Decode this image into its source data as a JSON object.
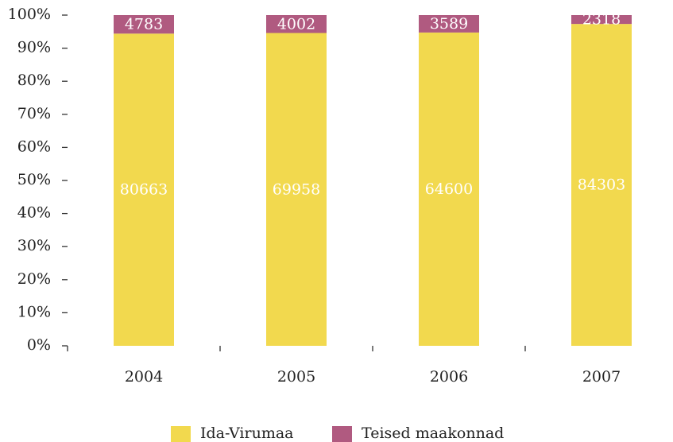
{
  "chart_data": {
    "type": "bar",
    "stacking": "percent",
    "categories": [
      "2004",
      "2005",
      "2006",
      "2007"
    ],
    "series": [
      {
        "name": "Ida-Virumaa",
        "color": "#f2d94e",
        "values": [
          80663,
          69958,
          64600,
          84303
        ]
      },
      {
        "name": "Teised maakonnad",
        "color": "#b05a80",
        "values": [
          4783,
          4002,
          3589,
          2318
        ]
      }
    ],
    "ylim": [
      0,
      100
    ],
    "yticks": [
      {
        "value": 0,
        "label": "0%"
      },
      {
        "value": 10,
        "label": "10%"
      },
      {
        "value": 20,
        "label": "20%"
      },
      {
        "value": 30,
        "label": "30%"
      },
      {
        "value": 40,
        "label": "40%"
      },
      {
        "value": 50,
        "label": "50%"
      },
      {
        "value": 60,
        "label": "60%"
      },
      {
        "value": 70,
        "label": "70%"
      },
      {
        "value": 80,
        "label": "80%"
      },
      {
        "value": 90,
        "label": "90%"
      },
      {
        "value": 100,
        "label": "100%"
      }
    ],
    "legend": "bottom"
  }
}
